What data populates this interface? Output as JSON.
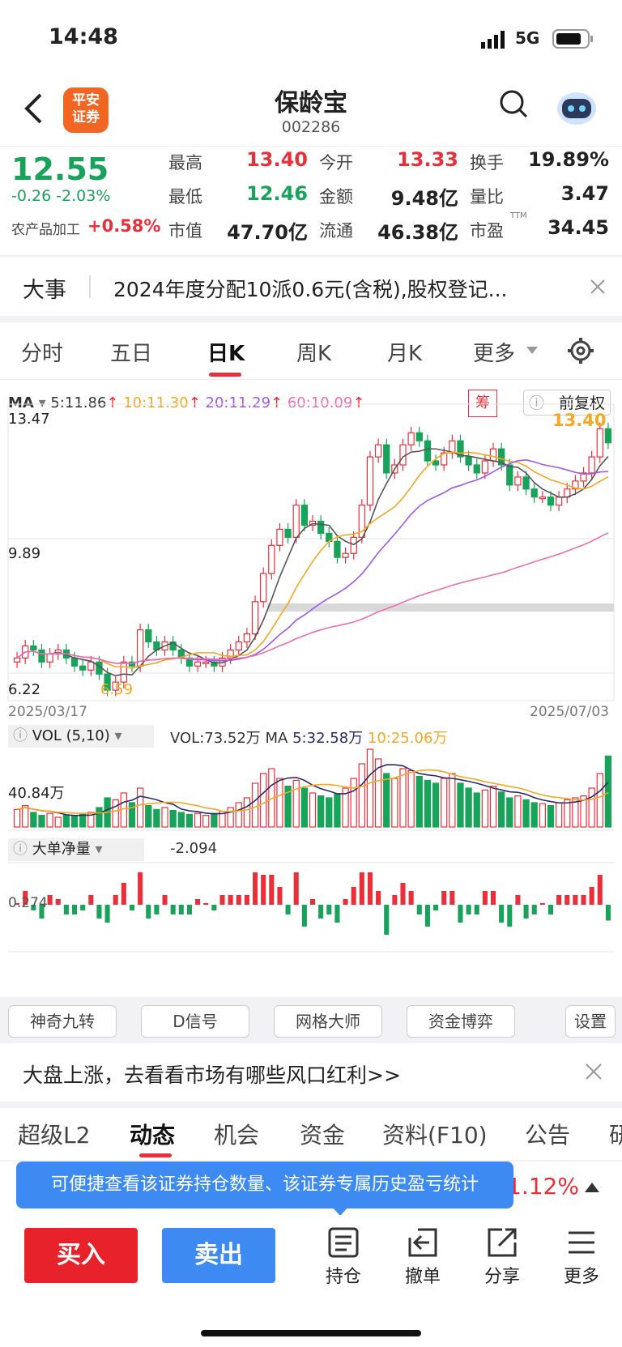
{
  "status": {
    "time": "14:48",
    "network": "5G"
  },
  "nav": {
    "back_icon": "chevron-left-icon",
    "logo_line1": "平安",
    "logo_line2": "证券",
    "title": "保龄宝",
    "code": "002286"
  },
  "quote": {
    "price": "12.55",
    "change": "-0.26 -2.03%",
    "sector": "农产品加工",
    "sector_change": "+0.58%",
    "high_label": "最高",
    "high": "13.40",
    "low_label": "最低",
    "low": "12.46",
    "mcap_label": "市值",
    "mcap": "47.70亿",
    "open_label": "今开",
    "open": "13.33",
    "amount_label": "金额",
    "amount": "9.48亿",
    "float_label": "流通",
    "float": "46.38亿",
    "turnover_label": "换手",
    "turnover": "19.89%",
    "vr_label": "量比",
    "vr": "3.47",
    "pe_label": "市盈",
    "pe_sup": "TTM",
    "pe": "34.45"
  },
  "event": {
    "tag": "大事",
    "text": "2024年度分配10派0.6元(含税),股权登记..."
  },
  "tabs": [
    "分时",
    "五日",
    "日K",
    "周K",
    "月K",
    "更多"
  ],
  "ma": {
    "label": "MA",
    "ma5": "5:11.86",
    "ma10": "10:11.30",
    "ma20": "20:11.29",
    "ma60": "60:10.09",
    "chip": "筹",
    "adjust": "前复权"
  },
  "chart_data": {
    "type": "candlestick",
    "price_max_label": "13.47",
    "price_mid_label": "9.89",
    "price_min_label": "6.22",
    "low_marker": "6.59",
    "high_marker": "13.40",
    "date_start": "2025/03/17",
    "date_end": "2025/07/03",
    "vol_header": "VOL (5,10)",
    "vol_value": "VOL:73.52万",
    "vol_ma": "MA",
    "vol_ma5": "5:32.58万",
    "vol_ma10": "10:25.06万",
    "vol_axis": "40.84万",
    "net_header": "大单净量",
    "net_value": "-2.094",
    "net_axis": "0.274",
    "closes": [
      7.2,
      7.5,
      7.4,
      7.1,
      7.3,
      7.4,
      7.2,
      7.0,
      6.9,
      7.1,
      6.8,
      6.4,
      6.6,
      7.1,
      7.0,
      7.9,
      7.6,
      7.4,
      7.6,
      7.4,
      7.2,
      7.0,
      7.1,
      7.1,
      7.0,
      7.2,
      7.4,
      7.6,
      7.8,
      8.6,
      9.3,
      10.0,
      10.4,
      10.2,
      11.0,
      10.5,
      10.6,
      10.3,
      10.1,
      9.7,
      9.8,
      10.2,
      11.0,
      12.2,
      12.5,
      11.8,
      12.0,
      12.5,
      12.8,
      12.6,
      12.1,
      12.0,
      12.3,
      12.6,
      12.2,
      12.0,
      11.8,
      12.1,
      12.4,
      12.0,
      11.5,
      11.7,
      11.4,
      11.2,
      11.2,
      11.0,
      11.2,
      11.4,
      11.6,
      11.8,
      12.2,
      12.9,
      12.55
    ],
    "volumes": [
      18,
      22,
      15,
      12,
      14,
      10,
      12,
      11,
      13,
      15,
      20,
      30,
      28,
      35,
      25,
      40,
      22,
      18,
      20,
      17,
      15,
      13,
      14,
      12,
      14,
      16,
      20,
      25,
      30,
      45,
      55,
      60,
      50,
      42,
      48,
      40,
      35,
      32,
      30,
      34,
      40,
      50,
      65,
      80,
      70,
      55,
      50,
      60,
      58,
      52,
      48,
      45,
      50,
      55,
      45,
      40,
      35,
      38,
      42,
      36,
      30,
      32,
      28,
      25,
      24,
      22,
      25,
      28,
      30,
      32,
      40,
      55,
      73
    ]
  },
  "buttons": [
    "神奇九转",
    "D信号",
    "网格大师",
    "资金博弈",
    "设置"
  ],
  "banner": {
    "text": "大盘上涨，去看看市场有哪些风口红利>>"
  },
  "tabs2": [
    "超级L2",
    "动态",
    "机会",
    "资金",
    "资料(F10)",
    "公告",
    "研"
  ],
  "tooltip": {
    "text": "可便捷查看该证券持仓数量、该证券专属历史盈亏统计",
    "hidden_value": "1.12%"
  },
  "bottom": {
    "buy": "买入",
    "sell": "卖出",
    "hold": "持仓",
    "cancel": "撤单",
    "share": "分享",
    "more": "更多"
  },
  "colors": {
    "up": "#e8303a",
    "down": "#19a35a",
    "accent": "#3d8bf2"
  }
}
